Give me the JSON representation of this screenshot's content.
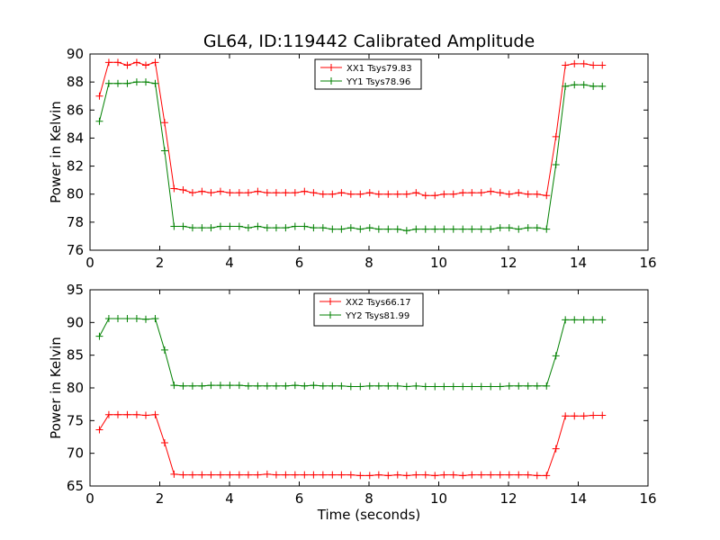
{
  "chart_data": [
    {
      "type": "line",
      "title": "GL64, ID:119442 Calibrated Amplitude",
      "xlabel": "",
      "ylabel": "Power in Kelvin",
      "xlim": [
        0,
        16
      ],
      "ylim": [
        76,
        90
      ],
      "xticks": [
        "0",
        "2",
        "4",
        "6",
        "8",
        "10",
        "12",
        "14",
        "16"
      ],
      "yticks": [
        "76",
        "78",
        "80",
        "82",
        "84",
        "86",
        "88",
        "90"
      ],
      "legend_position": "top-center",
      "x": [
        0.27,
        0.54,
        0.8,
        1.07,
        1.34,
        1.6,
        1.87,
        2.14,
        2.41,
        2.67,
        2.94,
        3.21,
        3.47,
        3.74,
        4.01,
        4.28,
        4.54,
        4.81,
        5.08,
        5.34,
        5.61,
        5.88,
        6.15,
        6.41,
        6.68,
        6.95,
        7.21,
        7.48,
        7.75,
        8.02,
        8.28,
        8.55,
        8.82,
        9.08,
        9.35,
        9.62,
        9.89,
        10.15,
        10.42,
        10.69,
        10.95,
        11.22,
        11.49,
        11.76,
        12.02,
        12.29,
        12.56,
        12.82,
        13.09,
        13.36,
        13.63,
        13.89,
        14.16,
        14.43,
        14.69
      ],
      "series": [
        {
          "name": "XX1 Tsys79.83",
          "color": "#ff0000",
          "values": [
            87.0,
            89.4,
            89.4,
            89.2,
            89.4,
            89.2,
            89.4,
            85.1,
            80.4,
            80.3,
            80.1,
            80.2,
            80.1,
            80.2,
            80.1,
            80.1,
            80.1,
            80.2,
            80.1,
            80.1,
            80.1,
            80.1,
            80.2,
            80.1,
            80.0,
            80.0,
            80.1,
            80.0,
            80.0,
            80.1,
            80.0,
            80.0,
            80.0,
            80.0,
            80.1,
            79.9,
            79.9,
            80.0,
            80.0,
            80.1,
            80.1,
            80.1,
            80.2,
            80.1,
            80.0,
            80.1,
            80.0,
            80.0,
            79.9,
            84.1,
            89.2,
            89.3,
            89.3,
            89.2,
            89.2
          ]
        },
        {
          "name": "YY1 Tsys78.96",
          "color": "#008000",
          "values": [
            85.2,
            87.9,
            87.9,
            87.9,
            88.0,
            88.0,
            87.9,
            83.1,
            77.7,
            77.7,
            77.6,
            77.6,
            77.6,
            77.7,
            77.7,
            77.7,
            77.6,
            77.7,
            77.6,
            77.6,
            77.6,
            77.7,
            77.7,
            77.6,
            77.6,
            77.5,
            77.5,
            77.6,
            77.5,
            77.6,
            77.5,
            77.5,
            77.5,
            77.4,
            77.5,
            77.5,
            77.5,
            77.5,
            77.5,
            77.5,
            77.5,
            77.5,
            77.5,
            77.6,
            77.6,
            77.5,
            77.6,
            77.6,
            77.5,
            82.1,
            87.7,
            87.8,
            87.8,
            87.7,
            87.7
          ]
        }
      ]
    },
    {
      "type": "line",
      "title": "",
      "xlabel": "Time (seconds)",
      "ylabel": "Power in Kelvin",
      "xlim": [
        0,
        16
      ],
      "ylim": [
        65,
        95
      ],
      "xticks": [
        "0",
        "2",
        "4",
        "6",
        "8",
        "10",
        "12",
        "14",
        "16"
      ],
      "yticks": [
        "65",
        "70",
        "75",
        "80",
        "85",
        "90",
        "95"
      ],
      "legend_position": "top-center",
      "x": [
        0.27,
        0.54,
        0.8,
        1.07,
        1.34,
        1.6,
        1.87,
        2.14,
        2.41,
        2.67,
        2.94,
        3.21,
        3.47,
        3.74,
        4.01,
        4.28,
        4.54,
        4.81,
        5.08,
        5.34,
        5.61,
        5.88,
        6.15,
        6.41,
        6.68,
        6.95,
        7.21,
        7.48,
        7.75,
        8.02,
        8.28,
        8.55,
        8.82,
        9.08,
        9.35,
        9.62,
        9.89,
        10.15,
        10.42,
        10.69,
        10.95,
        11.22,
        11.49,
        11.76,
        12.02,
        12.29,
        12.56,
        12.82,
        13.09,
        13.36,
        13.63,
        13.89,
        14.16,
        14.43,
        14.69
      ],
      "series": [
        {
          "name": "XX2 Tsys66.17",
          "color": "#ff0000",
          "values": [
            73.6,
            75.9,
            75.9,
            75.9,
            75.9,
            75.8,
            75.9,
            71.6,
            66.8,
            66.7,
            66.7,
            66.7,
            66.7,
            66.7,
            66.7,
            66.7,
            66.7,
            66.7,
            66.8,
            66.7,
            66.7,
            66.7,
            66.7,
            66.7,
            66.7,
            66.7,
            66.7,
            66.7,
            66.6,
            66.6,
            66.7,
            66.6,
            66.7,
            66.6,
            66.7,
            66.7,
            66.6,
            66.7,
            66.7,
            66.6,
            66.7,
            66.7,
            66.7,
            66.7,
            66.7,
            66.7,
            66.7,
            66.6,
            66.6,
            70.7,
            75.7,
            75.7,
            75.7,
            75.8,
            75.8
          ]
        },
        {
          "name": "YY2 Tsys81.99",
          "color": "#008000",
          "values": [
            87.9,
            90.6,
            90.6,
            90.6,
            90.6,
            90.5,
            90.6,
            85.8,
            80.4,
            80.3,
            80.3,
            80.3,
            80.4,
            80.4,
            80.4,
            80.4,
            80.3,
            80.3,
            80.3,
            80.3,
            80.3,
            80.4,
            80.3,
            80.4,
            80.3,
            80.3,
            80.3,
            80.2,
            80.2,
            80.3,
            80.3,
            80.3,
            80.3,
            80.2,
            80.3,
            80.2,
            80.2,
            80.2,
            80.2,
            80.2,
            80.2,
            80.2,
            80.2,
            80.2,
            80.3,
            80.3,
            80.3,
            80.3,
            80.3,
            84.9,
            90.4,
            90.4,
            90.4,
            90.4,
            90.4
          ]
        }
      ]
    }
  ]
}
